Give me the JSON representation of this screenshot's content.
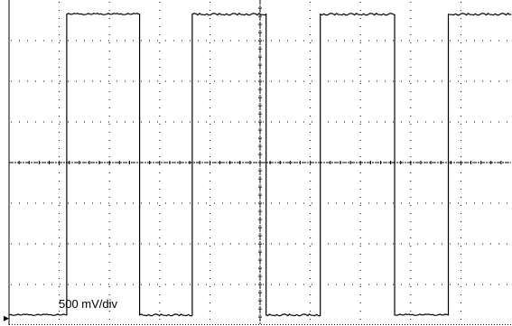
{
  "chart_data": {
    "type": "line",
    "title": "",
    "xlabel": "",
    "ylabel": "",
    "scale_label": "500 mV/div",
    "divisions": {
      "horizontal": 10,
      "vertical": 8
    },
    "grid": "dotted",
    "center_axes": true,
    "xlim": [
      0,
      10
    ],
    "ylim": [
      0,
      8
    ],
    "series": [
      {
        "x": [
          0,
          1.15,
          1.15,
          2.6,
          2.6,
          3.65,
          3.65,
          5.12,
          5.12,
          6.2,
          6.2,
          7.68,
          7.68,
          8.75,
          8.75,
          10
        ],
        "y": [
          0.25,
          0.25,
          7.65,
          7.65,
          0.25,
          0.25,
          7.65,
          7.65,
          0.25,
          0.25,
          7.65,
          7.65,
          0.25,
          0.25,
          7.65,
          7.65
        ]
      }
    ],
    "colors": {
      "trace": "#000000",
      "background": "#ffffff"
    }
  }
}
